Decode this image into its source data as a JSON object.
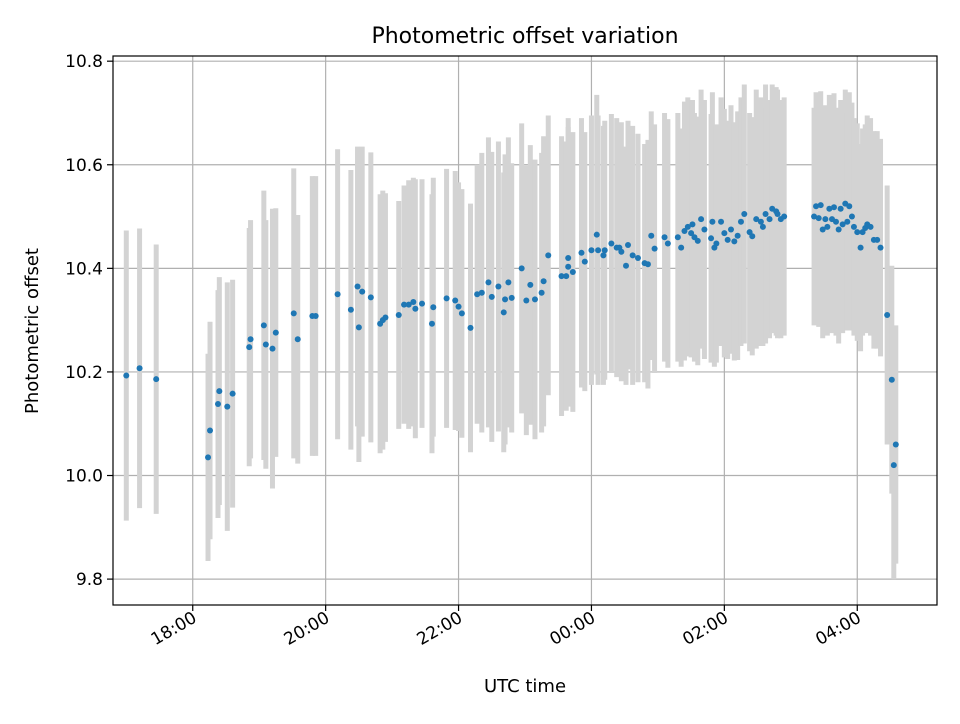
{
  "chart_data": {
    "type": "scatter",
    "title": "Photometric offset variation",
    "xlabel": "UTC time",
    "ylabel": "Photometric offset",
    "x_unit": "hours UTC (values past 24 are after midnight)",
    "xlim": [
      16.8,
      29.2
    ],
    "ylim": [
      9.75,
      10.81
    ],
    "x_tick_labels": [
      "18:00",
      "20:00",
      "22:00",
      "00:00",
      "02:00",
      "04:00"
    ],
    "y_tick_labels": [
      "9.8",
      "10.0",
      "10.2",
      "10.4",
      "10.6",
      "10.8"
    ],
    "grid": true,
    "colors": {
      "points": "#1f77b4",
      "error_bars": "#d3d3d3",
      "grid": "#b0b0b0"
    },
    "series": [
      {
        "errors": [
          [
            17.0,
            10.193,
            0.28
          ],
          [
            17.2,
            10.207,
            0.27
          ],
          [
            17.45,
            10.186,
            0.26
          ],
          [
            18.23,
            10.035,
            0.2
          ],
          [
            18.26,
            10.087,
            0.21
          ],
          [
            18.38,
            10.138,
            0.22
          ],
          [
            18.4,
            10.163,
            0.22
          ],
          [
            18.52,
            10.133,
            0.24
          ],
          [
            18.6,
            10.158,
            0.22
          ],
          [
            18.85,
            10.248,
            0.23
          ],
          [
            18.87,
            10.263,
            0.23
          ],
          [
            19.07,
            10.29,
            0.26
          ],
          [
            19.1,
            10.253,
            0.24
          ],
          [
            19.2,
            10.245,
            0.27
          ],
          [
            19.25,
            10.276,
            0.24
          ],
          [
            19.52,
            10.313,
            0.28
          ],
          [
            19.58,
            10.263,
            0.24
          ],
          [
            19.8,
            10.308,
            0.27
          ],
          [
            19.85,
            10.308,
            0.27
          ],
          [
            20.18,
            10.35,
            0.28
          ],
          [
            20.38,
            10.32,
            0.27
          ],
          [
            20.48,
            10.365,
            0.27
          ],
          [
            20.5,
            10.286,
            0.26
          ],
          [
            20.55,
            10.355,
            0.28
          ],
          [
            20.68,
            10.344,
            0.28
          ],
          [
            20.82,
            10.293,
            0.25
          ],
          [
            20.86,
            10.3,
            0.25
          ],
          [
            20.9,
            10.305,
            0.24
          ],
          [
            21.1,
            10.31,
            0.22
          ],
          [
            21.18,
            10.33,
            0.23
          ],
          [
            21.25,
            10.33,
            0.24
          ],
          [
            21.32,
            10.335,
            0.24
          ],
          [
            21.35,
            10.322,
            0.25
          ],
          [
            21.45,
            10.332,
            0.24
          ],
          [
            21.6,
            10.293,
            0.25
          ],
          [
            21.62,
            10.325,
            0.25
          ],
          [
            21.82,
            10.342,
            0.25
          ],
          [
            21.95,
            10.338,
            0.25
          ],
          [
            22.0,
            10.326,
            0.24
          ],
          [
            22.05,
            10.313,
            0.24
          ],
          [
            22.18,
            10.285,
            0.24
          ],
          [
            22.28,
            10.35,
            0.25
          ],
          [
            22.35,
            10.353,
            0.27
          ],
          [
            22.45,
            10.373,
            0.28
          ],
          [
            22.5,
            10.345,
            0.28
          ],
          [
            22.6,
            10.365,
            0.28
          ],
          [
            22.68,
            10.315,
            0.27
          ],
          [
            22.7,
            10.34,
            0.28
          ],
          [
            22.75,
            10.373,
            0.28
          ],
          [
            22.8,
            10.343,
            0.26
          ],
          [
            22.95,
            10.4,
            0.28
          ],
          [
            23.02,
            10.338,
            0.26
          ],
          [
            23.08,
            10.368,
            0.27
          ],
          [
            23.15,
            10.34,
            0.27
          ],
          [
            23.25,
            10.353,
            0.27
          ],
          [
            23.28,
            10.375,
            0.28
          ],
          [
            23.35,
            10.425,
            0.27
          ],
          [
            23.55,
            10.385,
            0.27
          ],
          [
            23.62,
            10.385,
            0.26
          ],
          [
            23.65,
            10.403,
            0.27
          ],
          [
            23.65,
            10.42,
            0.27
          ],
          [
            23.72,
            10.393,
            0.27
          ],
          [
            23.85,
            10.43,
            0.26
          ],
          [
            23.9,
            10.413,
            0.25
          ],
          [
            24.0,
            10.435,
            0.26
          ],
          [
            24.08,
            10.465,
            0.27
          ],
          [
            24.1,
            10.435,
            0.26
          ],
          [
            24.18,
            10.425,
            0.25
          ],
          [
            24.2,
            10.435,
            0.25
          ],
          [
            24.3,
            10.448,
            0.25
          ],
          [
            24.38,
            10.44,
            0.25
          ],
          [
            24.42,
            10.44,
            0.24
          ],
          [
            24.45,
            10.432,
            0.25
          ],
          [
            24.52,
            10.405,
            0.23
          ],
          [
            24.55,
            10.445,
            0.24
          ],
          [
            24.62,
            10.425,
            0.25
          ],
          [
            24.7,
            10.42,
            0.24
          ],
          [
            24.8,
            10.41,
            0.23
          ],
          [
            24.85,
            10.408,
            0.24
          ],
          [
            24.9,
            10.463,
            0.24
          ],
          [
            24.95,
            10.438,
            0.24
          ],
          [
            25.1,
            10.46,
            0.24
          ],
          [
            25.15,
            10.448,
            0.24
          ],
          [
            25.3,
            10.46,
            0.24
          ],
          [
            25.35,
            10.44,
            0.23
          ],
          [
            25.4,
            10.472,
            0.25
          ],
          [
            25.45,
            10.48,
            0.25
          ],
          [
            25.5,
            10.468,
            0.24
          ],
          [
            25.52,
            10.485,
            0.24
          ],
          [
            25.55,
            10.46,
            0.24
          ],
          [
            25.6,
            10.453,
            0.24
          ],
          [
            25.65,
            10.495,
            0.25
          ],
          [
            25.7,
            10.475,
            0.25
          ],
          [
            25.8,
            10.458,
            0.24
          ],
          [
            25.82,
            10.49,
            0.25
          ],
          [
            25.85,
            10.44,
            0.23
          ],
          [
            25.88,
            10.448,
            0.23
          ],
          [
            25.95,
            10.49,
            0.24
          ],
          [
            26.0,
            10.468,
            0.24
          ],
          [
            26.05,
            10.455,
            0.23
          ],
          [
            26.1,
            10.475,
            0.24
          ],
          [
            26.15,
            10.452,
            0.23
          ],
          [
            26.2,
            10.463,
            0.24
          ],
          [
            26.25,
            10.49,
            0.24
          ],
          [
            26.3,
            10.505,
            0.25
          ],
          [
            26.38,
            10.47,
            0.23
          ],
          [
            26.42,
            10.462,
            0.23
          ],
          [
            26.48,
            10.495,
            0.25
          ],
          [
            26.55,
            10.49,
            0.24
          ],
          [
            26.58,
            10.48,
            0.23
          ],
          [
            26.62,
            10.505,
            0.25
          ],
          [
            26.68,
            10.495,
            0.23
          ],
          [
            26.72,
            10.515,
            0.24
          ],
          [
            26.78,
            10.51,
            0.24
          ],
          [
            26.8,
            10.505,
            0.24
          ],
          [
            26.85,
            10.495,
            0.23
          ],
          [
            26.9,
            10.5,
            0.23
          ],
          [
            27.35,
            10.5,
            0.21
          ],
          [
            27.38,
            10.52,
            0.22
          ],
          [
            27.42,
            10.497,
            0.21
          ],
          [
            27.45,
            10.522,
            0.22
          ],
          [
            27.48,
            10.475,
            0.21
          ],
          [
            27.52,
            10.495,
            0.22
          ],
          [
            27.55,
            10.48,
            0.21
          ],
          [
            27.58,
            10.515,
            0.22
          ],
          [
            27.62,
            10.495,
            0.22
          ],
          [
            27.65,
            10.518,
            0.22
          ],
          [
            27.68,
            10.49,
            0.22
          ],
          [
            27.72,
            10.475,
            0.22
          ],
          [
            27.75,
            10.515,
            0.21
          ],
          [
            27.78,
            10.485,
            0.21
          ],
          [
            27.82,
            10.525,
            0.22
          ],
          [
            27.85,
            10.49,
            0.21
          ],
          [
            27.88,
            10.52,
            0.22
          ],
          [
            27.92,
            10.5,
            0.22
          ],
          [
            27.95,
            10.48,
            0.21
          ],
          [
            28.0,
            10.47,
            0.21
          ],
          [
            28.05,
            10.44,
            0.2
          ],
          [
            28.08,
            10.47,
            0.2
          ],
          [
            28.12,
            10.478,
            0.2
          ],
          [
            28.15,
            10.485,
            0.21
          ],
          [
            28.2,
            10.48,
            0.21
          ],
          [
            28.25,
            10.455,
            0.21
          ],
          [
            28.3,
            10.455,
            0.21
          ],
          [
            28.35,
            10.44,
            0.21
          ],
          [
            28.45,
            10.31,
            0.25
          ],
          [
            28.52,
            10.185,
            0.22
          ],
          [
            28.55,
            10.02,
            0.22
          ],
          [
            28.58,
            10.06,
            0.23
          ]
        ]
      }
    ]
  }
}
